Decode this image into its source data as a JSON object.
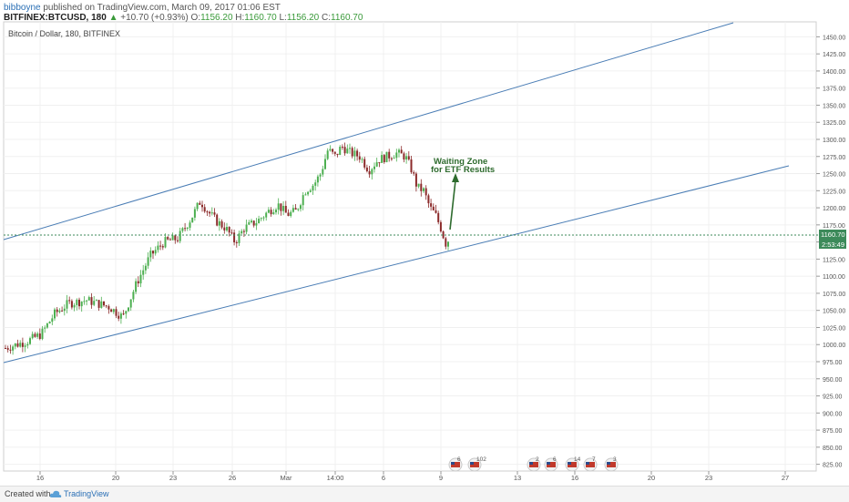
{
  "header": {
    "user": "bibboyne",
    "published": "published on TradingView.com, March 09, 2017 01:06 EST",
    "symbol": "BITFINEX:BTCUSD, 180",
    "change_arrow": "▲",
    "change": "+10.70 (+0.93%)",
    "o_label": "O:",
    "o_value": "1156.20",
    "h_label": "H:",
    "h_value": "1160.70",
    "l_label": "L:",
    "l_value": "1156.20",
    "c_label": "C:",
    "c_value": "1160.70"
  },
  "chart_data": {
    "type": "candlestick",
    "title": "Bitcoin / Dollar, 180, BITFINEX",
    "ylim": [
      812.5,
      1462.5
    ],
    "yticks": [
      "825.00",
      "850.00",
      "875.00",
      "900.00",
      "925.00",
      "950.00",
      "975.00",
      "1000.00",
      "1025.00",
      "1050.00",
      "1075.00",
      "1100.00",
      "1125.00",
      "1150.00",
      "1175.00",
      "1200.00",
      "1225.00",
      "1250.00",
      "1275.00",
      "1300.00",
      "1325.00",
      "1350.00",
      "1375.00",
      "1400.00",
      "1425.00",
      "1450.00"
    ],
    "xticks": [
      "16",
      "20",
      "23",
      "26",
      "Mar",
      "14:00",
      "6",
      "9",
      "13",
      "16",
      "20",
      "23",
      "27"
    ],
    "last_price": "1160.70",
    "countdown": "2:53:49",
    "annotation": {
      "line1": "Waiting Zone",
      "line2": "for ETF Results"
    },
    "events": [
      "6",
      "102",
      "2",
      "6",
      "14",
      "7",
      "3"
    ],
    "colors": {
      "up": "#4caf50",
      "down": "#8b2a2a",
      "channel": "#4a7db5",
      "price_line": "#3c8a5a",
      "annotation": "#2e6b2e"
    }
  },
  "footer": {
    "created": "Created with",
    "brand": "TradingView"
  }
}
